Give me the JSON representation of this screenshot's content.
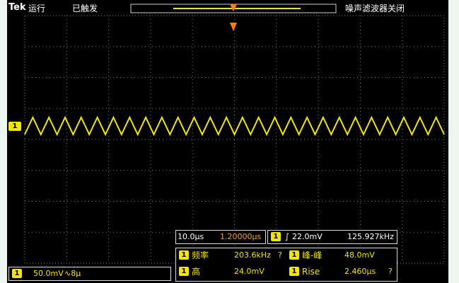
{
  "top_bar": {
    "brand": "Tek",
    "run_state": "运行",
    "trigger_state": "已触发",
    "filter": "噪声滤波器关闭"
  },
  "channel_marker": "1",
  "timebase": {
    "scale": "10.0µs",
    "position": "1.20000µs"
  },
  "trigger": {
    "channel": "1",
    "level": "22.0mV",
    "frequency": "125.927kHz"
  },
  "measurements": [
    {
      "channel": "1",
      "name": "频率",
      "value": "203.6kHz",
      "flag": "?"
    },
    {
      "channel": "1",
      "name": "峰-峰",
      "value": "48.0mV"
    },
    {
      "channel": "1",
      "name": "高",
      "value": "24.0mV"
    },
    {
      "channel": "1",
      "name": "Rise",
      "value": "2.460µs",
      "flag": "?"
    }
  ],
  "channel_readout": {
    "channel": "1",
    "scale": "50.0mV",
    "coupling": "∿8µ"
  }
}
